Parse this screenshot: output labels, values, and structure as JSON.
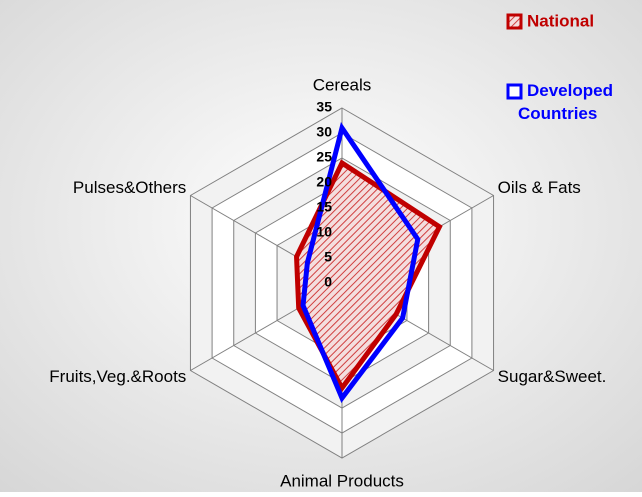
{
  "chart_data": {
    "type": "radar",
    "categories": [
      "Cereals",
      "Oils & Fats",
      "Sugar&Sweet.",
      "Animal Products",
      "Fruits,Veg.&Roots",
      "Pulses&Others"
    ],
    "series": [
      {
        "name": "National",
        "color": "#c00000",
        "values": [
          24,
          22.5,
          12.5,
          21,
          10,
          10.5
        ]
      },
      {
        "name": "Developed Countries",
        "color": "#0000ff",
        "values": [
          31,
          17.5,
          14,
          23,
          9,
          8
        ]
      }
    ],
    "ylim": [
      0,
      35
    ],
    "yticks": [
      0,
      5,
      10,
      15,
      20,
      25,
      30,
      35
    ],
    "legend": "top-right",
    "grid": true
  }
}
